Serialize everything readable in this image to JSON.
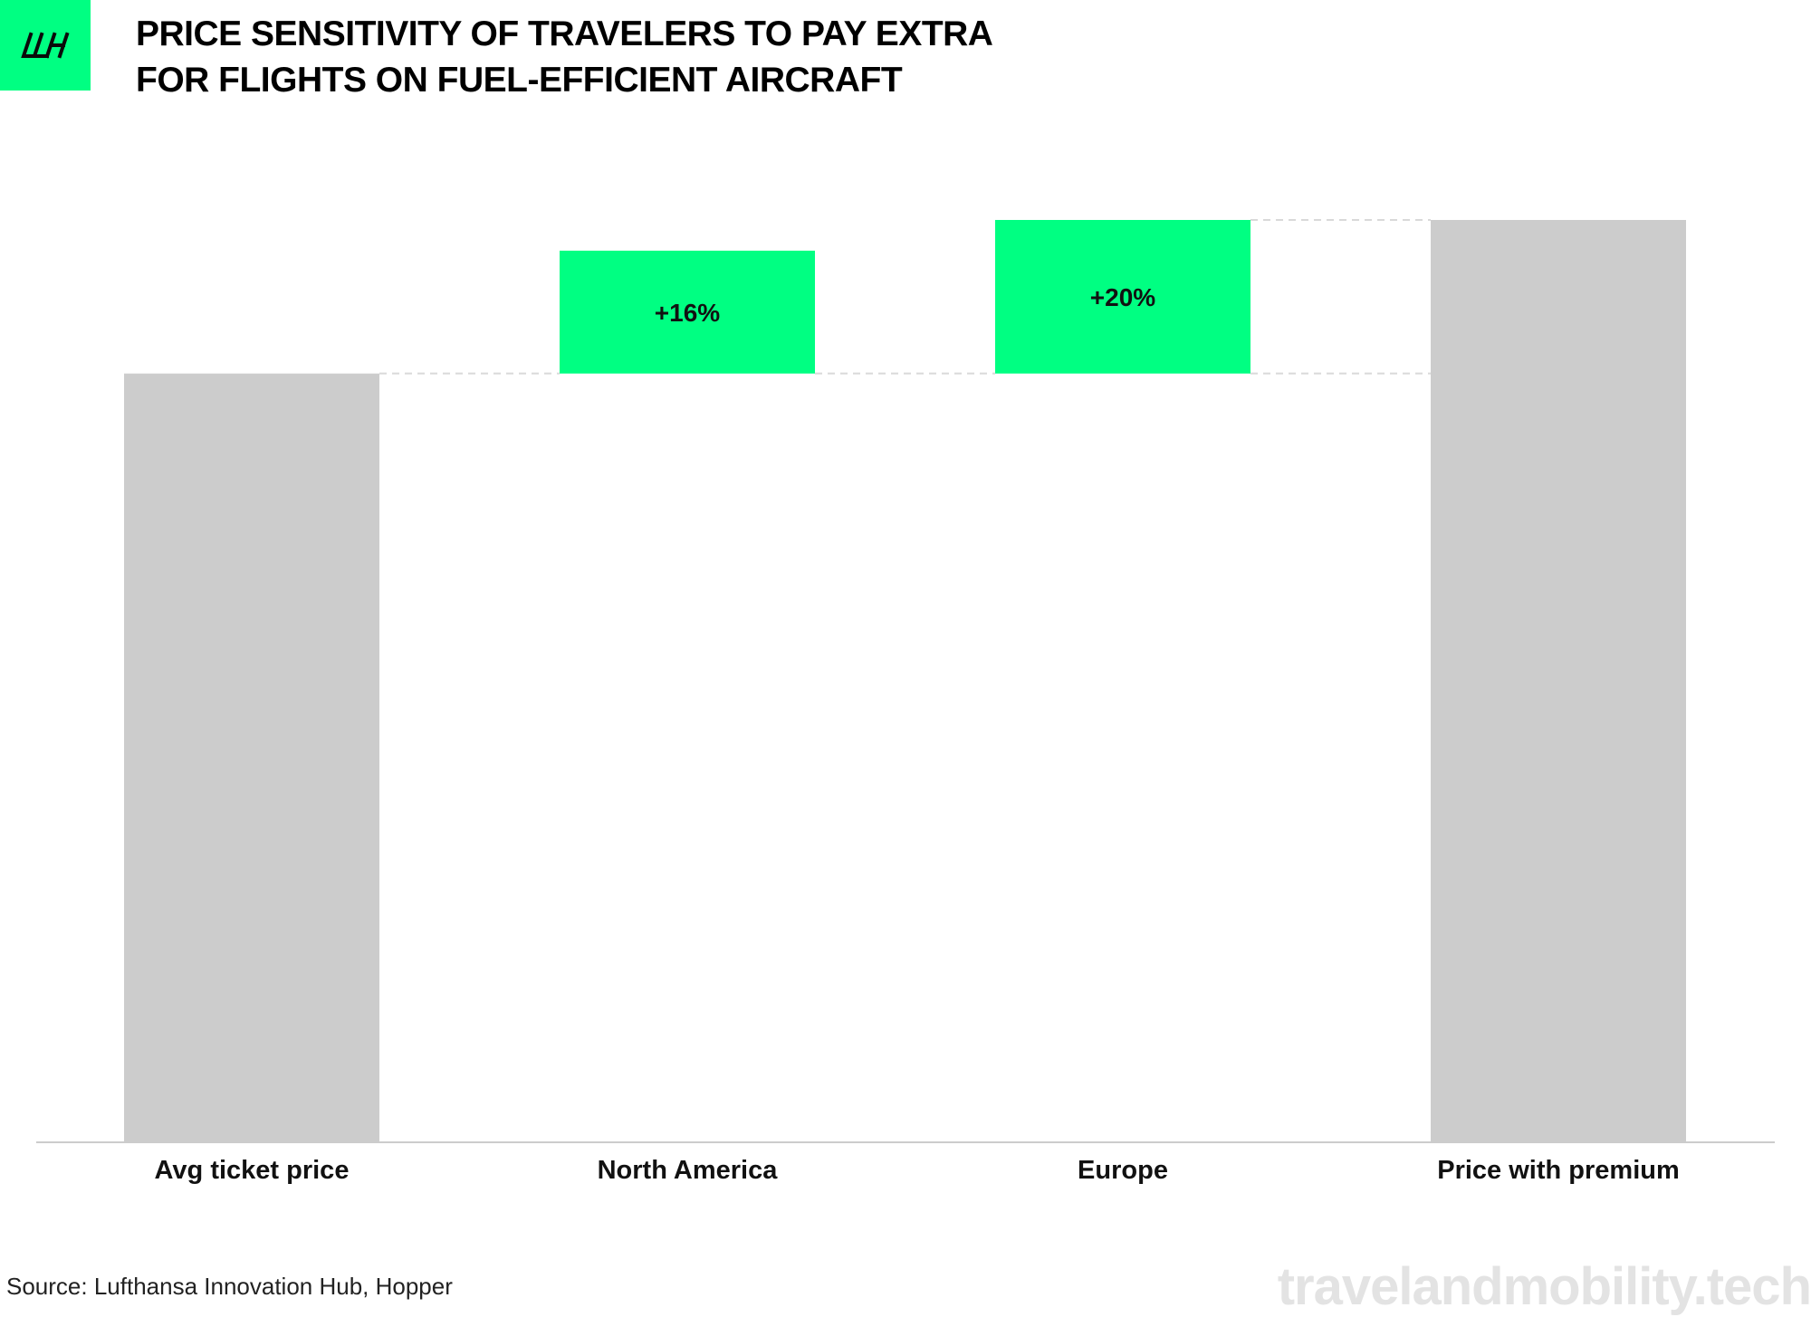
{
  "logo": {
    "name": "lh-logo-icon",
    "bg_color": "#00ff82"
  },
  "title_lines": [
    "PRICE SENSITIVITY OF TRAVELERS TO PAY EXTRA",
    "FOR FLIGHTS ON FUEL-EFFICIENT AIRCRAFT"
  ],
  "chart_data": {
    "type": "bar",
    "subtype": "waterfall",
    "title": "PRICE SENSITIVITY OF TRAVELERS TO PAY EXTRA FOR FLIGHTS ON FUEL-EFFICIENT AIRCRAFT",
    "categories": [
      "Avg ticket price",
      "North America",
      "Europe",
      "Price with premium"
    ],
    "bars": [
      {
        "category": "Avg ticket price",
        "kind": "total",
        "start": 0,
        "end": 100,
        "label": ""
      },
      {
        "category": "North America",
        "kind": "increase",
        "start": 100,
        "end": 116,
        "label": "+16%"
      },
      {
        "category": "Europe",
        "kind": "increase",
        "start": 100,
        "end": 120,
        "label": "+20%"
      },
      {
        "category": "Price with premium",
        "kind": "total",
        "start": 0,
        "end": 120,
        "label": ""
      }
    ],
    "ylim": [
      0,
      120
    ],
    "xlabel": "",
    "ylabel": "",
    "grid": false,
    "legend": "none",
    "colors": {
      "total": "#cccccc",
      "increase": "#00ff82",
      "connector": "#d9d9d9",
      "axis": "#cccccc"
    }
  },
  "source": "Source: Lufthansa Innovation Hub, Hopper",
  "watermark": "travelandmobility.tech"
}
